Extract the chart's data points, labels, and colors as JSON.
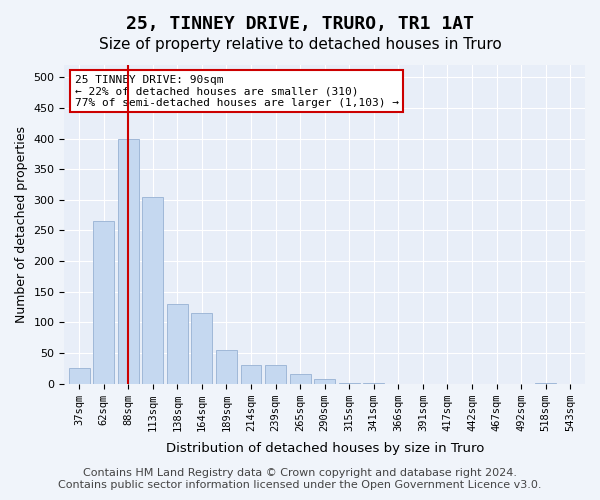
{
  "title": "25, TINNEY DRIVE, TRURO, TR1 1AT",
  "subtitle": "Size of property relative to detached houses in Truro",
  "xlabel": "Distribution of detached houses by size in Truro",
  "ylabel": "Number of detached properties",
  "categories": [
    "37sqm",
    "62sqm",
    "88sqm",
    "113sqm",
    "138sqm",
    "164sqm",
    "189sqm",
    "214sqm",
    "239sqm",
    "265sqm",
    "290sqm",
    "315sqm",
    "341sqm",
    "366sqm",
    "391sqm",
    "417sqm",
    "442sqm",
    "467sqm",
    "492sqm",
    "518sqm",
    "543sqm"
  ],
  "values": [
    25,
    265,
    400,
    305,
    130,
    115,
    55,
    30,
    30,
    15,
    8,
    1,
    1,
    0,
    0,
    0,
    0,
    0,
    0,
    1,
    0
  ],
  "bar_color": "#c5d8f0",
  "bar_edge_color": "#a0b8d8",
  "marker_index": 2,
  "marker_color": "#cc0000",
  "ylim": [
    0,
    520
  ],
  "yticks": [
    0,
    50,
    100,
    150,
    200,
    250,
    300,
    350,
    400,
    450,
    500
  ],
  "annotation_title": "25 TINNEY DRIVE: 90sqm",
  "annotation_line1": "← 22% of detached houses are smaller (310)",
  "annotation_line2": "77% of semi-detached houses are larger (1,103) →",
  "annotation_box_color": "#ffffff",
  "annotation_box_edge": "#cc0000",
  "footer_line1": "Contains HM Land Registry data © Crown copyright and database right 2024.",
  "footer_line2": "Contains public sector information licensed under the Open Government Licence v3.0.",
  "background_color": "#f0f4fa",
  "plot_background": "#e8eef8",
  "grid_color": "#ffffff",
  "title_fontsize": 13,
  "subtitle_fontsize": 11,
  "footer_fontsize": 8
}
